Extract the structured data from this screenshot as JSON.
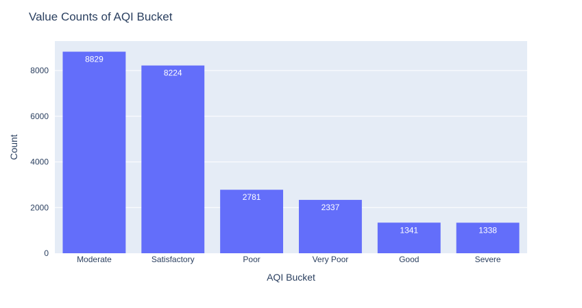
{
  "chart_data": {
    "type": "bar",
    "title": "Value Counts of AQI Bucket",
    "xlabel": "AQI Bucket",
    "ylabel": "Count",
    "categories": [
      "Moderate",
      "Satisfactory",
      "Poor",
      "Very Poor",
      "Good",
      "Severe"
    ],
    "values": [
      8829,
      8224,
      2781,
      2337,
      1341,
      1338
    ],
    "data_labels": [
      "8829",
      "8224",
      "2781",
      "2337",
      "1341",
      "1338"
    ],
    "yticks": [
      0,
      2000,
      4000,
      6000,
      8000
    ],
    "ytick_labels": [
      "0",
      "2000",
      "4000",
      "6000",
      "8000"
    ],
    "ylim": [
      0,
      9294
    ],
    "grid": true,
    "legend": "none",
    "colors": {
      "bar": "#636efa",
      "plot_bg": "#e5ecf6",
      "grid": "#ffffff",
      "text": "#2a3f5f",
      "label": "#ffffff"
    }
  }
}
